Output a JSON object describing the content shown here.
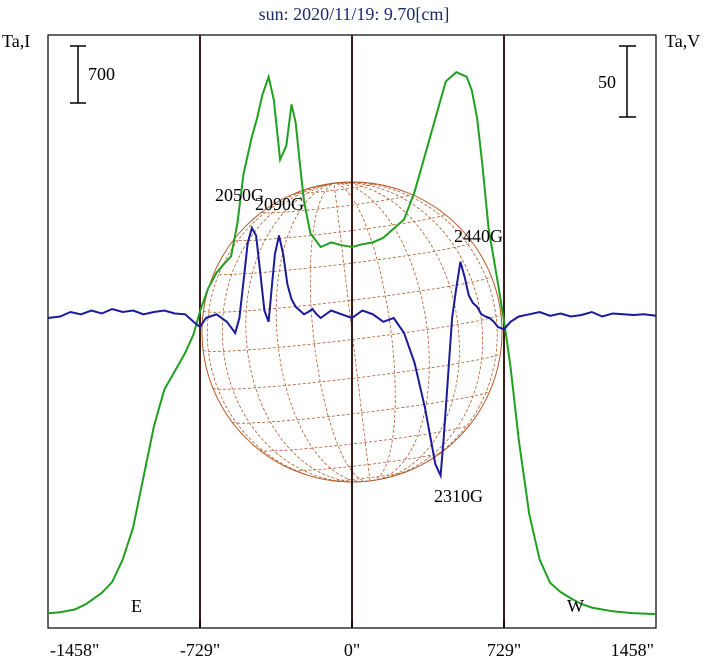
{
  "chart_data": {
    "type": "line",
    "title": "sun: 2020/11/19: 9.70[cm]",
    "ylabel_left": "Ta,I",
    "ylabel_right": "Ta,V",
    "scale_bar_left": "700",
    "scale_bar_right": "50",
    "x_ticks": [
      "-1458\"",
      "-729\"",
      "0\"",
      "729\"",
      "1458\""
    ],
    "x_tick_values": [
      -1458,
      -729,
      0,
      729,
      1458
    ],
    "xlim": [
      -1458,
      1458
    ],
    "limb_labels": {
      "east": "E",
      "west": "W"
    },
    "limb_positions": [
      -729,
      0,
      729
    ],
    "series": [
      {
        "color": "#1fa01f",
        "x": [
          -1458,
          -1400,
          -1330,
          -1275,
          -1200,
          -1150,
          -1100,
          -1050,
          -1000,
          -950,
          -900,
          -850,
          -800,
          -760,
          -729,
          -690,
          -650,
          -620,
          -580,
          -550,
          -520,
          -495,
          -480,
          -455,
          -430,
          -400,
          -375,
          -345,
          -315,
          -290,
          -270,
          -250,
          -230,
          -200,
          -150,
          -100,
          -50,
          0,
          50,
          100,
          150,
          200,
          250,
          300,
          350,
          400,
          450,
          500,
          550,
          575,
          600,
          625,
          655,
          700,
          729,
          760,
          800,
          850,
          900,
          950,
          1000,
          1050,
          1100,
          1150,
          1200,
          1250,
          1300,
          1350,
          1400,
          1458
        ],
        "y": [
          0.02,
          0.03,
          0.06,
          0.12,
          0.24,
          0.36,
          0.6,
          0.95,
          1.5,
          2.05,
          2.45,
          2.65,
          2.85,
          3.05,
          3.3,
          3.55,
          3.72,
          3.8,
          3.9,
          4.25,
          4.8,
          5.05,
          5.2,
          5.4,
          5.65,
          5.85,
          5.6,
          4.95,
          5.1,
          5.55,
          5.35,
          4.9,
          4.5,
          4.15,
          4.0,
          4.05,
          4.02,
          4.0,
          4.03,
          4.05,
          4.1,
          4.2,
          4.3,
          4.6,
          5.0,
          5.4,
          5.8,
          5.9,
          5.85,
          5.7,
          5.4,
          4.9,
          4.2,
          3.6,
          3.2,
          2.7,
          1.9,
          1.1,
          0.6,
          0.35,
          0.25,
          0.18,
          0.12,
          0.08,
          0.06,
          0.04,
          0.03,
          0.02,
          0.015,
          0.01
        ]
      },
      {
        "color": "#1a1a9a",
        "x": [
          -1458,
          -1400,
          -1350,
          -1300,
          -1250,
          -1200,
          -1150,
          -1100,
          -1050,
          -1000,
          -950,
          -900,
          -850,
          -800,
          -760,
          -729,
          -700,
          -650,
          -600,
          -560,
          -540,
          -520,
          -500,
          -480,
          -460,
          -440,
          -420,
          -400,
          -385,
          -370,
          -350,
          -330,
          -310,
          -290,
          -270,
          -250,
          -230,
          -210,
          -190,
          -170,
          -150,
          -100,
          -50,
          0,
          50,
          100,
          150,
          200,
          250,
          300,
          350,
          400,
          425,
          440,
          455,
          470,
          480,
          490,
          500,
          520,
          540,
          560,
          580,
          600,
          620,
          640,
          660,
          680,
          700,
          729,
          760,
          800,
          850,
          900,
          950,
          1000,
          1050,
          1100,
          1150,
          1200,
          1250,
          1300,
          1350,
          1400,
          1458
        ],
        "y": [
          0,
          0.02,
          0.08,
          0.05,
          0.1,
          0.06,
          0.12,
          0.08,
          0.1,
          0.05,
          0.08,
          0.1,
          0.06,
          0.05,
          -0.05,
          -0.12,
          0.0,
          0.05,
          -0.05,
          -0.2,
          0.0,
          0.5,
          1.0,
          1.2,
          1.1,
          0.6,
          0.1,
          -0.05,
          0.4,
          0.85,
          1.1,
          0.85,
          0.45,
          0.25,
          0.15,
          0.1,
          0.05,
          0.08,
          0.12,
          0.05,
          0.0,
          0.1,
          0.05,
          0.0,
          0.1,
          0.05,
          -0.05,
          0.0,
          -0.2,
          -0.6,
          -1.2,
          -1.95,
          -2.1,
          -1.6,
          -1.0,
          -0.4,
          0.0,
          0.2,
          0.4,
          0.75,
          0.55,
          0.3,
          0.2,
          0.15,
          0.05,
          0.02,
          0.0,
          -0.05,
          -0.12,
          -0.15,
          -0.05,
          0.02,
          0.05,
          0.08,
          0.03,
          0.06,
          0.02,
          0.04,
          0.08,
          0.02,
          0.06,
          0.05,
          0.04,
          0.05,
          0.03
        ]
      }
    ],
    "annotations": [
      {
        "text": "2050G",
        "x": -490,
        "series": 0
      },
      {
        "text": "2090G",
        "x": -300,
        "series": 0
      },
      {
        "text": "2440G",
        "x": 600,
        "series": 0
      },
      {
        "text": "2310G",
        "x": 420,
        "series": 1
      }
    ],
    "colors": {
      "stokes_i": "#1fa01f",
      "stokes_v": "#1a1a9a",
      "disk_grid": "#b45a2a",
      "limb_line": "#3a1a1a",
      "title": "#1a2a6c"
    }
  }
}
